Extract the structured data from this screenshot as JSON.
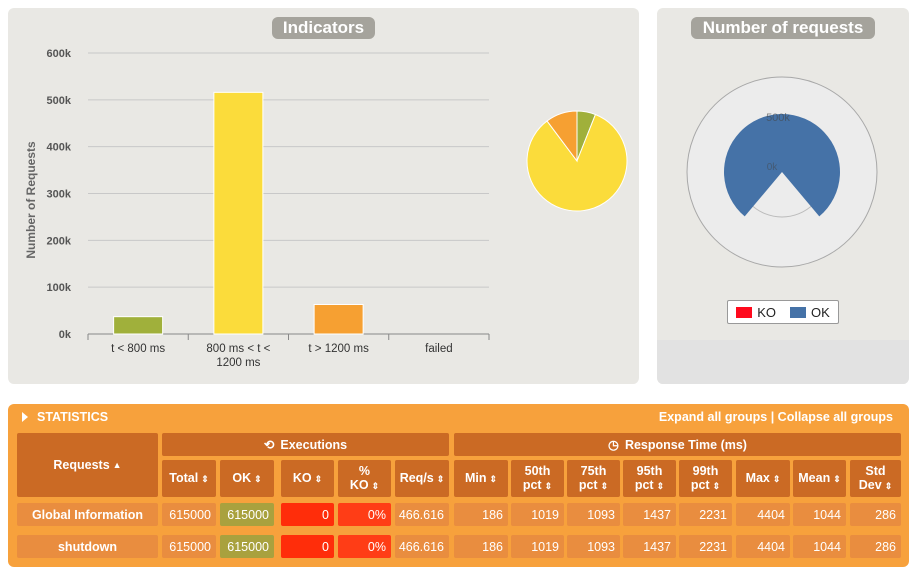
{
  "indicators": {
    "title": "Indicators",
    "ylabel": "Number of Requests",
    "yticks": [
      "0k",
      "100k",
      "200k",
      "300k",
      "400k",
      "500k",
      "600k"
    ],
    "categories": [
      "t < 800 ms",
      "800 ms < t <",
      "t > 1200 ms",
      "failed"
    ],
    "category_line2": [
      "",
      "1200 ms",
      "",
      ""
    ]
  },
  "chart_data": [
    {
      "type": "bar",
      "title": "Indicators",
      "ylabel": "Number of Requests",
      "categories": [
        "t < 800 ms",
        "800 ms < t < 1200 ms",
        "t > 1200 ms",
        "failed"
      ],
      "values": [
        37000,
        516000,
        63000,
        0
      ],
      "colors": [
        "#a0b03b",
        "#fbdc3b",
        "#f6a032",
        "#ff1f1f"
      ],
      "ylim": [
        0,
        600000
      ],
      "grid": true
    },
    {
      "type": "pie",
      "values": [
        37000,
        516000,
        63000,
        0
      ],
      "categories": [
        "t < 800 ms",
        "800 ms < t < 1200 ms",
        "t > 1200 ms",
        "failed"
      ],
      "colors": [
        "#a0b03b",
        "#fbdc3b",
        "#f6a032",
        "#ff1f1f"
      ]
    },
    {
      "type": "pie",
      "title": "Number of requests",
      "series": [
        {
          "name": "KO",
          "value": 0
        },
        {
          "name": "OK",
          "value": 615000
        }
      ],
      "gauge_labels": [
        "500k",
        "0k"
      ],
      "colors": [
        "#ff0a1d",
        "#4572a7"
      ],
      "legend_position": "bottom"
    }
  ],
  "requests": {
    "title": "Number of requests",
    "gauge_top": "500k",
    "gauge_zero": "0k",
    "legend": [
      {
        "label": "KO",
        "color": "#ff0a1d"
      },
      {
        "label": "OK",
        "color": "#4572a7"
      }
    ]
  },
  "stats": {
    "title": "STATISTICS",
    "expand_label": "Expand all groups | Collapse all groups",
    "requests_header": "Requests",
    "executions_header": "Executions",
    "response_header": "Response Time (ms)",
    "columns": [
      "Total",
      "OK",
      "KO",
      "% KO",
      "Req/s",
      "Min",
      "50th pct",
      "75th pct",
      "95th pct",
      "99th pct",
      "Max",
      "Mean",
      "Std Dev"
    ],
    "rows": [
      {
        "name": "Global Information",
        "values": [
          "615000",
          "615000",
          "0",
          "0%",
          "466.616",
          "186",
          "1019",
          "1093",
          "1437",
          "2231",
          "4404",
          "1044",
          "286"
        ]
      },
      {
        "name": "shutdown",
        "values": [
          "615000",
          "615000",
          "0",
          "0%",
          "466.616",
          "186",
          "1019",
          "1093",
          "1437",
          "2231",
          "4404",
          "1044",
          "286"
        ]
      }
    ]
  }
}
